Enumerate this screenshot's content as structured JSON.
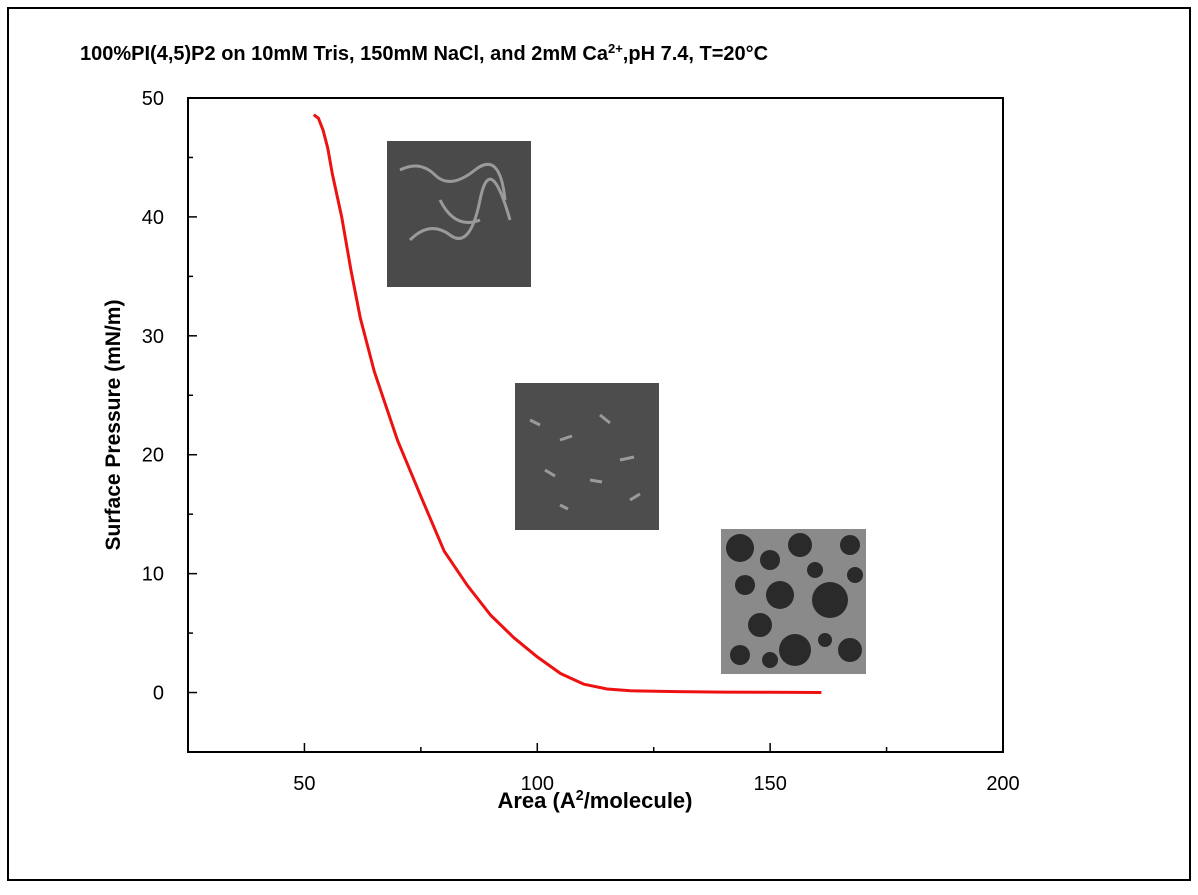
{
  "chart_data": {
    "type": "line",
    "title": [
      "100%PI(4,5)P2 on 10mM Tris, 150mM NaCl, and 2mM Ca",
      "2+",
      ",pH 7.4, T=20°C"
    ],
    "x_label": [
      "Area (A",
      "2",
      "/molecule)"
    ],
    "y_label": "Surface Pressure (mN/m)",
    "x": [
      52,
      53,
      54,
      55,
      56,
      57,
      58,
      60,
      62,
      65,
      70,
      75,
      80,
      85,
      90,
      95,
      100,
      105,
      110,
      115,
      120,
      130,
      140,
      150,
      161
    ],
    "values": [
      48.6,
      48.3,
      47.3,
      45.8,
      43.6,
      41.8,
      40,
      35.5,
      31.5,
      27,
      21.2,
      16.5,
      11.9,
      9,
      6.5,
      4.6,
      3,
      1.6,
      0.7,
      0.3,
      0.15,
      0.08,
      0.04,
      0.02,
      0
    ],
    "color": "#ee1111",
    "xlim": [
      25,
      200
    ],
    "xticks": [
      50,
      100,
      150,
      200
    ],
    "xminorticks": [
      75,
      125,
      175
    ],
    "ylim": [
      -5,
      50
    ],
    "yticks": [
      0,
      10,
      20,
      30,
      40,
      50
    ],
    "yminorticks": [
      -5,
      5,
      15,
      25,
      35,
      45
    ]
  }
}
